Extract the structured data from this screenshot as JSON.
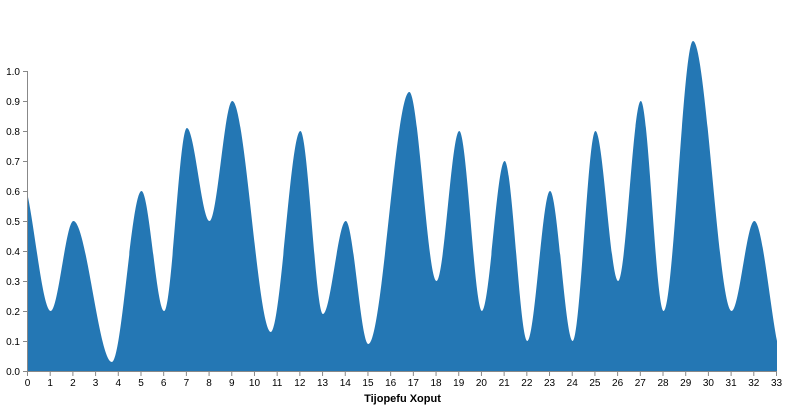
{
  "chart_data": {
    "type": "area",
    "title": "",
    "xlabel": "Tijopefu Xoput",
    "ylabel": "",
    "xlim": [
      0,
      33
    ],
    "ylim": [
      0,
      1.0
    ],
    "x_ticks": [
      0,
      1,
      2,
      3,
      4,
      5,
      6,
      7,
      8,
      9,
      10,
      11,
      12,
      13,
      14,
      15,
      16,
      17,
      18,
      19,
      20,
      21,
      22,
      23,
      24,
      25,
      26,
      27,
      28,
      29,
      30,
      31,
      32,
      33
    ],
    "y_ticks": [
      0.0,
      0.1,
      0.2,
      0.3,
      0.4,
      0.5,
      0.6,
      0.7,
      0.8,
      0.9,
      1.0
    ],
    "y_tick_labels": [
      "0.0",
      "0.1",
      "0.2",
      "0.3",
      "0.4",
      "0.5",
      "0.6",
      "0.7",
      "0.8",
      "0.9",
      "1.0"
    ],
    "grid": false,
    "interpolation": "smooth",
    "color": "#2477b4",
    "series": [
      {
        "x": [
          0,
          1,
          2,
          3.7,
          5,
          6,
          7,
          8,
          9,
          10.7,
          12,
          13,
          14,
          15,
          16.8,
          18,
          19,
          20,
          21,
          22,
          23,
          24,
          25,
          26,
          27,
          28,
          29.3,
          31,
          32,
          33
        ],
        "values": [
          0.58,
          0.2,
          0.5,
          0.03,
          0.6,
          0.2,
          0.81,
          0.5,
          0.9,
          0.13,
          0.8,
          0.19,
          0.5,
          0.09,
          0.93,
          0.3,
          0.8,
          0.2,
          0.7,
          0.1,
          0.6,
          0.1,
          0.8,
          0.3,
          0.9,
          0.2,
          1.1,
          0.2,
          0.5,
          0.1
        ]
      }
    ]
  }
}
